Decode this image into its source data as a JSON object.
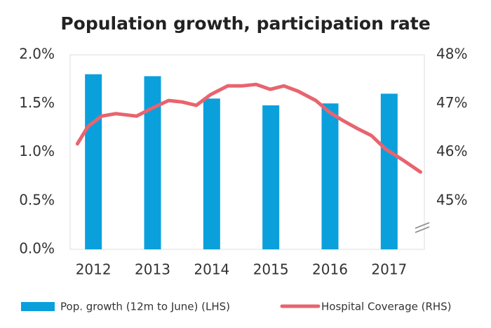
{
  "chart_data": {
    "type": "bar-line",
    "title": "Population growth, participation rate",
    "categories": [
      "2012",
      "2013",
      "2014",
      "2015",
      "2016",
      "2017"
    ],
    "series": [
      {
        "name": "Pop. growth (12m to June) (LHS)",
        "color": "#0aa0dc",
        "type": "bar",
        "axis": "y",
        "values": [
          1.8,
          1.78,
          1.55,
          1.48,
          1.5,
          1.6
        ]
      },
      {
        "name": "Hospital Coverage (RHS)",
        "color": "#e8646e",
        "type": "line",
        "axis": "y2",
        "x": [
          2011.73,
          2011.91,
          2012.14,
          2012.38,
          2012.73,
          2012.97,
          2013.27,
          2013.5,
          2013.74,
          2013.98,
          2014.27,
          2014.51,
          2014.75,
          2014.99,
          2015.22,
          2015.46,
          2015.76,
          2015.99,
          2016.23,
          2016.47,
          2016.7,
          2016.94,
          2017.24,
          2017.53
        ],
        "values": [
          46.17,
          46.53,
          46.74,
          46.79,
          46.74,
          46.89,
          47.06,
          47.03,
          46.96,
          47.18,
          47.36,
          47.36,
          47.39,
          47.29,
          47.36,
          47.25,
          47.06,
          46.82,
          46.64,
          46.48,
          46.34,
          46.06,
          45.83,
          45.59
        ]
      }
    ],
    "ylim": [
      0,
      2
    ],
    "yticks": [
      {
        "value": 0,
        "label": "0.0%"
      },
      {
        "value": 0.5,
        "label": "0.5%"
      },
      {
        "value": 1,
        "label": "1.0%"
      },
      {
        "value": 1.5,
        "label": "1.5%"
      },
      {
        "value": 2,
        "label": "2.0%"
      }
    ],
    "y2lim": [
      44,
      48
    ],
    "y2ticks": [
      {
        "value": 45,
        "label": "45%"
      },
      {
        "value": 46,
        "label": "46%"
      },
      {
        "value": 47,
        "label": "47%"
      },
      {
        "value": 48,
        "label": "48%"
      }
    ],
    "grid": false,
    "legend": "bottom"
  }
}
